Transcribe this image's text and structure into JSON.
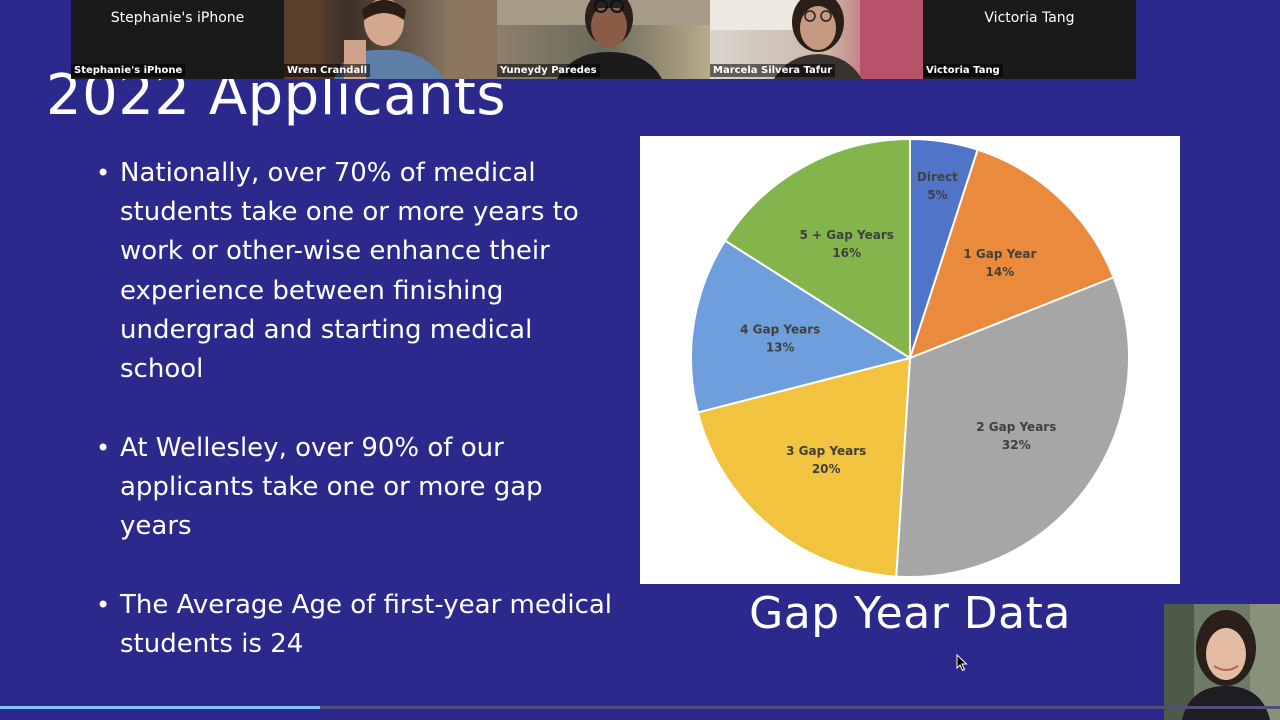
{
  "slide": {
    "title": "2022 Applicants",
    "bullets": [
      "Nationally, over 70% of  medical students take one  or more years to work or other-wise enhance their experience between finishing undergrad and starting medical school",
      "At Wellesley, over 90% of our applicants take one or more gap years",
      "The Average Age of first-year medical students is 24"
    ],
    "chart_caption": "Gap Year Data"
  },
  "chart_data": {
    "type": "pie",
    "title": "",
    "slices": [
      {
        "label": "Direct",
        "value": 5,
        "display": "5%",
        "color": "#4f74c8"
      },
      {
        "label": "1 Gap Year",
        "value": 14,
        "display": "14%",
        "color": "#ea8a3c"
      },
      {
        "label": "2 Gap Years",
        "value": 32,
        "display": "32%",
        "color": "#a6a6a6"
      },
      {
        "label": "3 Gap Years",
        "value": 20,
        "display": "20%",
        "color": "#f2c33e"
      },
      {
        "label": "4 Gap Years",
        "value": 13,
        "display": "13%",
        "color": "#6e9fdc"
      },
      {
        "label": "5 + Gap Years",
        "value": 16,
        "display": "16%",
        "color": "#84b54c"
      }
    ]
  },
  "participants": [
    {
      "tile_name": "Stephanie's iPhone",
      "label": "Stephanie's iPhone",
      "video": false
    },
    {
      "label": "Wren Crandall",
      "video": true
    },
    {
      "label": "Yuneydy Paredes",
      "video": true
    },
    {
      "label": "Marcela Silvera Tafur",
      "video": true
    },
    {
      "tile_name": "Victoria Tang",
      "label": "Victoria Tang",
      "video": false
    }
  ],
  "playback": {
    "progress_fraction": 0.25
  },
  "icons": {
    "cursor": "mouse-pointer-icon"
  }
}
